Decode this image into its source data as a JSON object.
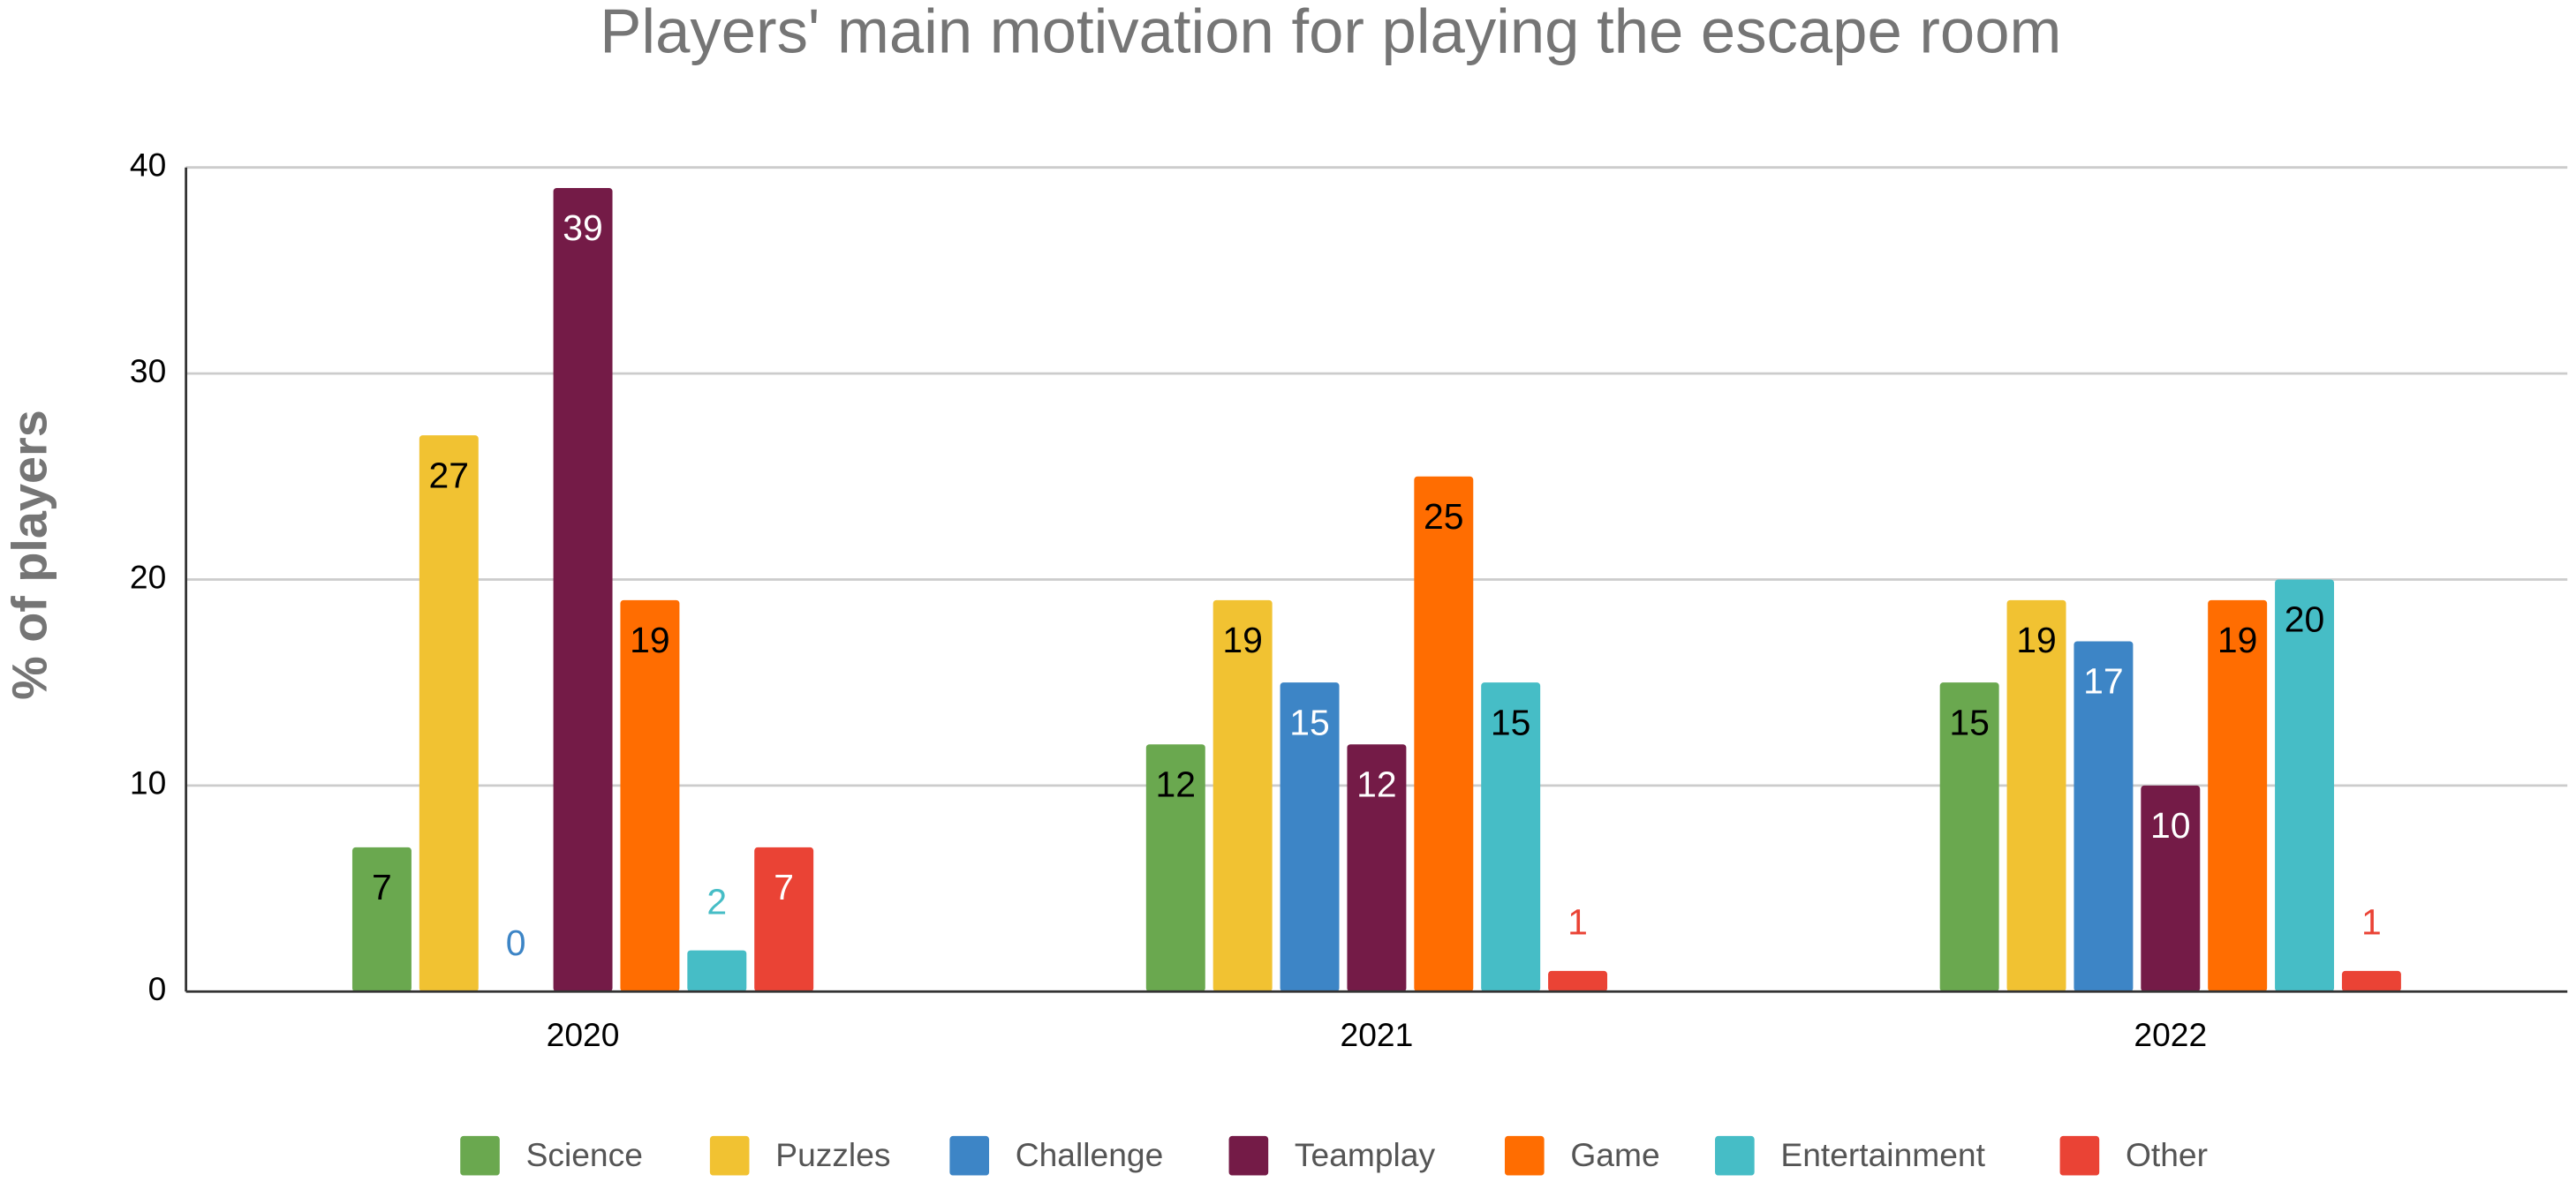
{
  "chart_data": {
    "type": "bar",
    "title": "Players' main motivation for playing the escape room",
    "y_label": "% of players",
    "categories": [
      "2020",
      "2021",
      "2022"
    ],
    "series": [
      {
        "name": "Science",
        "color": "#6aa84f",
        "values": [
          7,
          12,
          15
        ]
      },
      {
        "name": "Puzzles",
        "color": "#f1c232",
        "values": [
          27,
          19,
          19
        ]
      },
      {
        "name": "Challenge",
        "color": "#3d85c6",
        "values": [
          0,
          15,
          17
        ]
      },
      {
        "name": "Teamplay",
        "color": "#741b47",
        "values": [
          39,
          12,
          10
        ]
      },
      {
        "name": "Game",
        "color": "#ff6d01",
        "values": [
          19,
          25,
          19
        ]
      },
      {
        "name": "Entertainment",
        "color": "#46bdc6",
        "values": [
          2,
          15,
          20
        ]
      },
      {
        "name": "Other",
        "color": "#ea4335",
        "values": [
          7,
          1,
          1
        ]
      }
    ],
    "ylim": [
      0,
      40
    ],
    "yticks": [
      0,
      10,
      20,
      30,
      40
    ],
    "grid": true,
    "legend": "bottom"
  }
}
